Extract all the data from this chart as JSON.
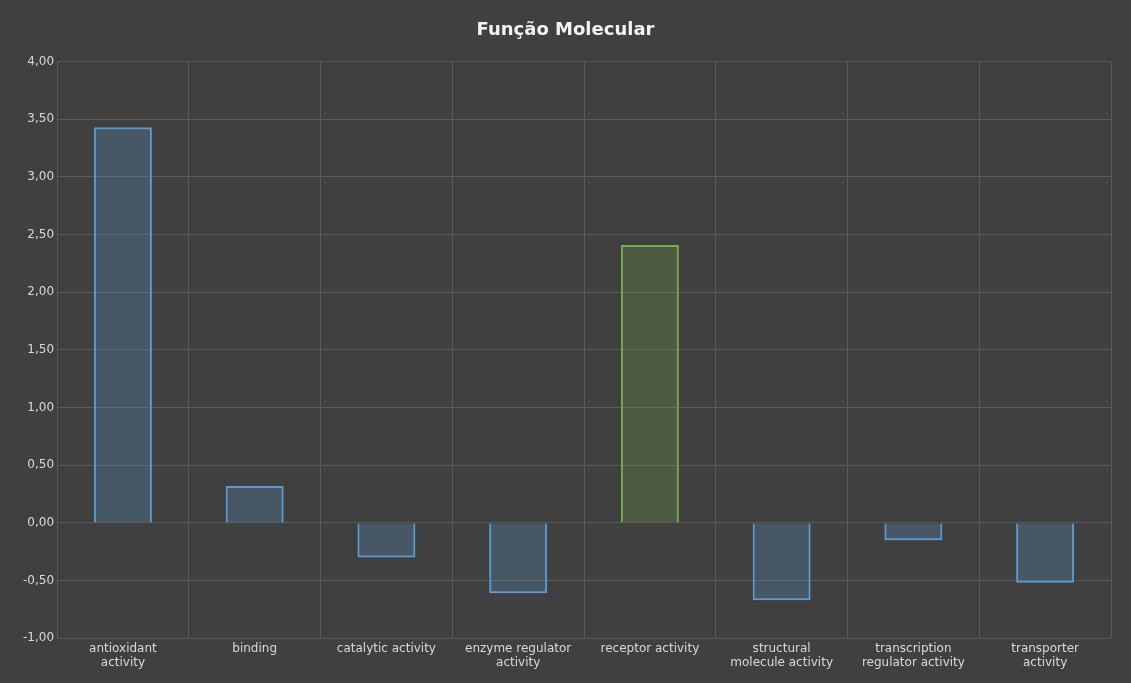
{
  "chart_data": {
    "type": "bar",
    "title": "Função Molecular",
    "categories": [
      "antioxidant activity",
      "binding",
      "catalytic activity",
      "enzyme regulator activity",
      "receptor activity",
      "structural molecule activity",
      "transcription regulator activity",
      "transporter activity"
    ],
    "values": [
      3.43,
      0.32,
      -0.3,
      -0.61,
      2.41,
      -0.67,
      -0.15,
      -0.52
    ],
    "colors": [
      "#5b9bd5",
      "#5b9bd5",
      "#5b9bd5",
      "#5b9bd5",
      "#70ad47",
      "#5b9bd5",
      "#5b9bd5",
      "#5b9bd5"
    ],
    "ylim": [
      -1,
      4
    ],
    "yticks": [
      {
        "value": -1,
        "label": "-1,00"
      },
      {
        "value": -0.5,
        "label": "-0,50"
      },
      {
        "value": 0,
        "label": "0,00"
      },
      {
        "value": 0.5,
        "label": "0,50"
      },
      {
        "value": 1,
        "label": "1,00"
      },
      {
        "value": 1.5,
        "label": "1,50"
      },
      {
        "value": 2,
        "label": "2,00"
      },
      {
        "value": 2.5,
        "label": "2,50"
      },
      {
        "value": 3,
        "label": "3,00"
      },
      {
        "value": 3.5,
        "label": "3,50"
      },
      {
        "value": 4,
        "label": "4,00"
      }
    ],
    "grid": true,
    "legend": false
  }
}
